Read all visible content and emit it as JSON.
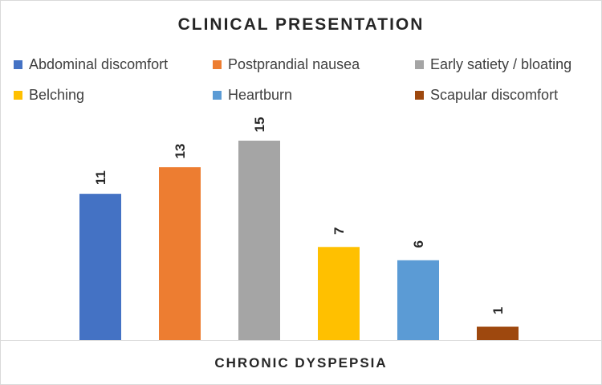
{
  "chart_data": {
    "type": "bar",
    "title": "CLINICAL PRESENTATION",
    "xlabel": "CHRONIC DYSPEPSIA",
    "ylabel": "",
    "categories": [
      "CHRONIC DYSPEPSIA"
    ],
    "series": [
      {
        "name": "Abdominal discomfort",
        "values": [
          11
        ],
        "color": "#4472c4"
      },
      {
        "name": "Postprandial nausea",
        "values": [
          13
        ],
        "color": "#ed7d31"
      },
      {
        "name": "Early satiety / bloating",
        "values": [
          15
        ],
        "color": "#a5a5a5"
      },
      {
        "name": "Belching",
        "values": [
          7
        ],
        "color": "#ffc000"
      },
      {
        "name": "Heartburn",
        "values": [
          6
        ],
        "color": "#5b9bd5"
      },
      {
        "name": "Scapular discomfort",
        "values": [
          1
        ],
        "color": "#9e480e"
      }
    ],
    "ylim": [
      0,
      15
    ],
    "grid": false,
    "legend_position": "top",
    "data_labels": "rotated, above bars"
  }
}
